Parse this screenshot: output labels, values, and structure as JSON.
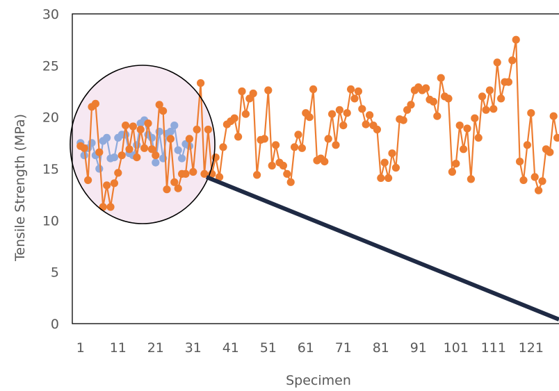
{
  "chart_data": {
    "type": "line",
    "title": "",
    "xlabel": "Specimen",
    "ylabel": "Tensile Strength (MPa)",
    "xlim": [
      0,
      128
    ],
    "ylim": [
      0,
      30
    ],
    "x_ticks": [
      1,
      11,
      21,
      31,
      41,
      51,
      61,
      71,
      81,
      91,
      101,
      111,
      121
    ],
    "y_ticks": [
      0,
      5,
      10,
      15,
      20,
      25,
      30
    ],
    "grid": false,
    "legend": "none",
    "series": [
      {
        "color": "#8faadc",
        "x": [
          1,
          2,
          3,
          4,
          5,
          6,
          7,
          8,
          9,
          10,
          11,
          12,
          13,
          14,
          15,
          16,
          17,
          18,
          19,
          20,
          21,
          22,
          23,
          24,
          25,
          26,
          27,
          28,
          29,
          30
        ],
        "values": [
          17.5,
          16.3,
          17.0,
          17.5,
          16.3,
          15.0,
          17.7,
          18.0,
          16.0,
          16.1,
          18.0,
          18.3,
          18.3,
          16.5,
          16.3,
          17.3,
          19.4,
          19.7,
          18.3,
          18.0,
          15.6,
          18.6,
          16.0,
          18.4,
          18.6,
          19.2,
          16.8,
          16.0,
          17.4,
          17.2
        ]
      },
      {
        "color": "#ed7d31",
        "x": [
          1,
          2,
          3,
          4,
          5,
          6,
          7,
          8,
          9,
          10,
          11,
          12,
          13,
          14,
          15,
          16,
          17,
          18,
          19,
          20,
          21,
          22,
          23,
          24,
          25,
          26,
          27,
          28,
          29,
          30,
          31,
          32,
          33,
          34,
          35,
          36,
          37,
          38,
          39,
          40,
          41,
          42,
          43,
          44,
          45,
          46,
          47,
          48,
          49,
          50,
          51,
          52,
          53,
          54,
          55,
          56,
          57,
          58,
          59,
          60,
          61,
          62,
          63,
          64,
          65,
          66,
          67,
          68,
          69,
          70,
          71,
          72,
          73,
          74,
          75,
          76,
          77,
          78,
          79,
          80,
          81,
          82,
          83,
          84,
          85,
          86,
          87,
          88,
          89,
          90,
          91,
          92,
          93,
          94,
          95,
          96,
          97,
          98,
          99,
          100,
          101,
          102,
          103,
          104,
          105,
          106,
          107,
          108,
          109,
          110,
          111,
          112,
          113,
          114,
          115,
          116,
          117,
          118,
          119,
          120,
          121,
          122,
          123,
          124,
          125,
          126,
          127,
          128
        ],
        "values": [
          17.2,
          17.0,
          13.9,
          21.0,
          21.3,
          16.6,
          11.3,
          13.4,
          11.3,
          13.6,
          14.6,
          16.3,
          19.2,
          16.9,
          19.1,
          16.1,
          18.8,
          17.0,
          19.4,
          16.9,
          16.3,
          21.2,
          20.6,
          13.0,
          17.9,
          13.7,
          13.1,
          14.5,
          14.5,
          17.9,
          14.7,
          18.8,
          23.3,
          14.5,
          18.8,
          14.5,
          16.1,
          14.2,
          17.1,
          19.3,
          19.6,
          19.9,
          18.1,
          22.5,
          20.3,
          21.8,
          22.3,
          14.4,
          17.8,
          17.9,
          22.6,
          15.3,
          17.3,
          15.6,
          15.3,
          14.5,
          13.7,
          17.1,
          18.3,
          17.0,
          20.4,
          20.0,
          22.7,
          15.8,
          16.0,
          15.7,
          17.9,
          20.3,
          17.3,
          20.7,
          19.2,
          20.4,
          22.7,
          21.8,
          22.5,
          20.8,
          19.3,
          20.2,
          19.2,
          18.8,
          14.1,
          15.6,
          14.1,
          16.5,
          15.1,
          19.8,
          19.7,
          20.7,
          21.2,
          22.6,
          22.9,
          22.6,
          22.8,
          21.7,
          21.5,
          20.1,
          23.8,
          22.0,
          21.8,
          14.7,
          15.5,
          19.2,
          16.9,
          18.9,
          14.0,
          19.9,
          18.0,
          22.0,
          20.7,
          22.6,
          20.8,
          25.3,
          21.8,
          23.4,
          23.4,
          25.5,
          27.5,
          15.7,
          13.9,
          17.3,
          20.4,
          14.2,
          12.9,
          13.8,
          16.9,
          16.6,
          20.1,
          18.0
        ]
      }
    ]
  }
}
